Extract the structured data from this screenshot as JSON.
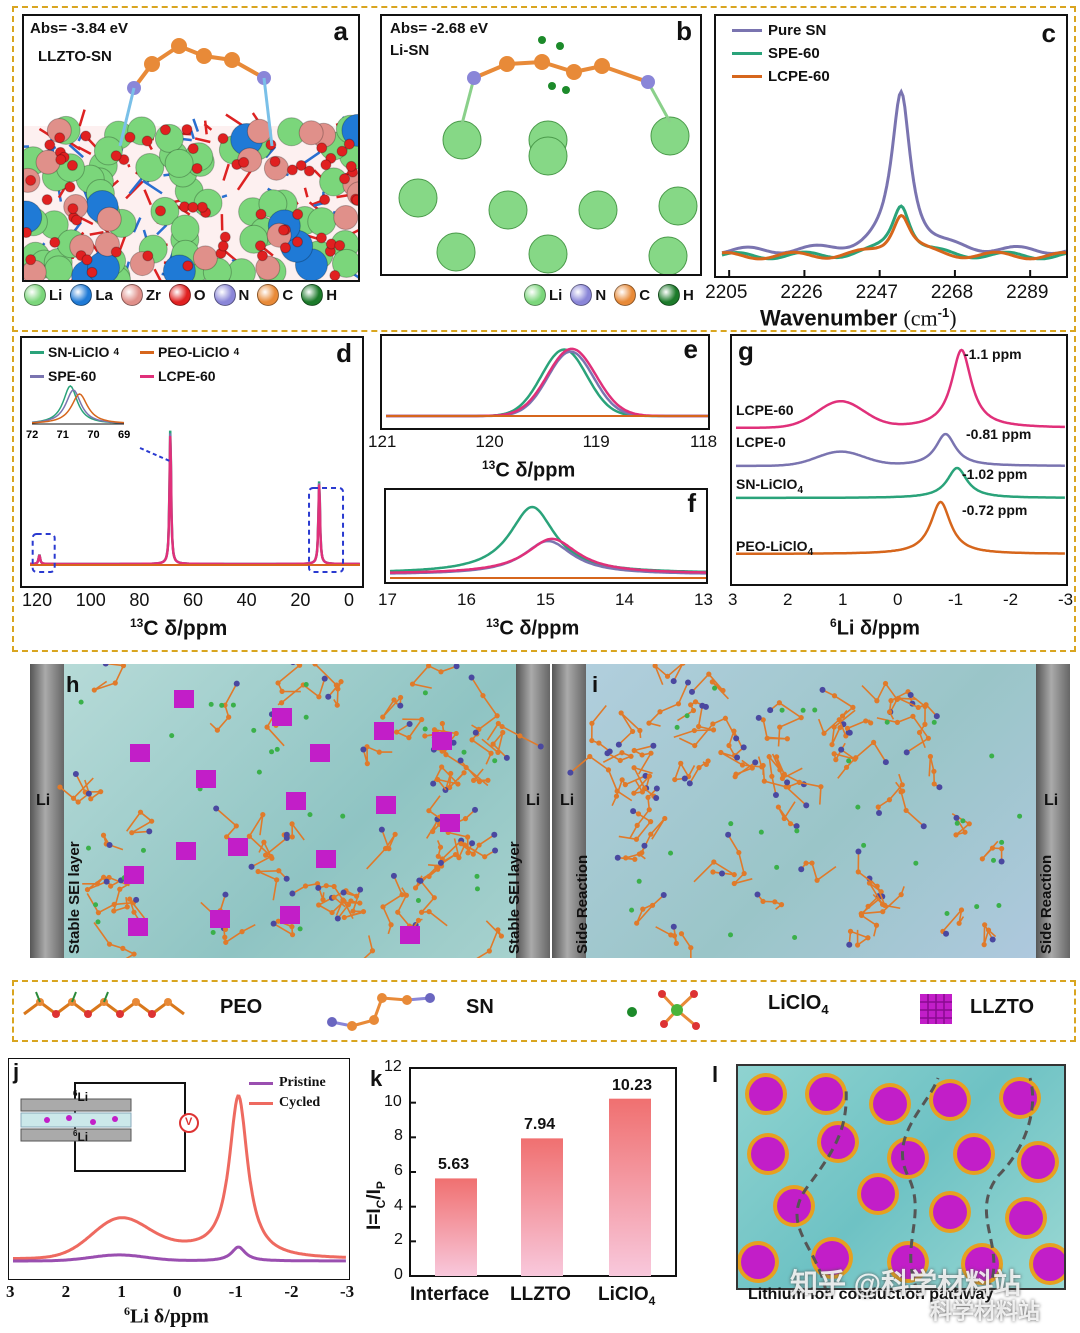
{
  "panel_a": {
    "label": "a",
    "energy": "Abs= -3.84 eV",
    "system": "LLZTO-SN",
    "legend": [
      {
        "symbol": "Li",
        "color": "#7bd67b"
      },
      {
        "symbol": "La",
        "color": "#1f7ad6"
      },
      {
        "symbol": "Zr",
        "color": "#e0908a"
      },
      {
        "symbol": "O",
        "color": "#e02020"
      },
      {
        "symbol": "N",
        "color": "#8a86d8"
      },
      {
        "symbol": "C",
        "color": "#e88a38"
      },
      {
        "symbol": "H",
        "color": "#1c7a2a"
      }
    ]
  },
  "panel_b": {
    "label": "b",
    "energy": "Abs= -2.68 eV",
    "system": "Li-SN",
    "legend": [
      {
        "symbol": "Li",
        "color": "#7bd67b"
      },
      {
        "symbol": "N",
        "color": "#8a86d8"
      },
      {
        "symbol": "C",
        "color": "#e88a38"
      },
      {
        "symbol": "H",
        "color": "#1c7a2a"
      }
    ]
  },
  "panel_c": {
    "label": "c",
    "xlabel": "Wavenumber",
    "xunit": "(cm",
    "xunit_sup": "-1",
    "xunit_close": ")",
    "chart_data": {
      "type": "line",
      "x_ticks": [
        "2205",
        "2226",
        "2247",
        "2268",
        "2289"
      ],
      "xlim": [
        2203,
        2299
      ],
      "series": [
        {
          "name": "Pure SN",
          "color": "#7a74b0",
          "peak_x": 2253,
          "peak_height": 1.0
        },
        {
          "name": "SPE-60",
          "color": "#2aa37a",
          "peak_x": 2253,
          "peak_height": 0.33
        },
        {
          "name": "LCPE-60",
          "color": "#d6661c",
          "peak_x": 2253,
          "peak_height": 0.27
        }
      ]
    }
  },
  "panel_d": {
    "label": "d",
    "xlabel_sup": "13",
    "xlabel": "C δ/ppm",
    "chart_data": {
      "type": "line",
      "x_ticks": [
        "120",
        "100",
        "80",
        "60",
        "40",
        "20",
        "0"
      ],
      "xlim": [
        123,
        0
      ],
      "inset_ticks": [
        "72",
        "71",
        "70",
        "69"
      ],
      "series": [
        {
          "name": "SN-LiClO",
          "name_sub": "4",
          "color": "#2aa37a"
        },
        {
          "name": "PEO-LiClO",
          "name_sub": "4",
          "color": "#d6661c"
        },
        {
          "name": "SPE-60",
          "color": "#7a74b0"
        },
        {
          "name": "LCPE-60",
          "color": "#e0307a"
        }
      ]
    }
  },
  "panel_e": {
    "label": "e",
    "xlabel_sup": "13",
    "xlabel": "C δ/ppm",
    "chart_data": {
      "type": "line",
      "x_ticks": [
        "121",
        "120",
        "119",
        "118"
      ],
      "xlim": [
        121,
        118
      ]
    }
  },
  "panel_f": {
    "label": "f",
    "xlabel_sup": "13",
    "xlabel": "C δ/ppm",
    "chart_data": {
      "type": "line",
      "x_ticks": [
        "17",
        "16",
        "15",
        "14",
        "13"
      ],
      "xlim": [
        17,
        13
      ]
    }
  },
  "panel_g": {
    "label": "g",
    "xlabel_sup": "6",
    "xlabel": "Li δ/ppm",
    "chart_data": {
      "type": "line",
      "x_ticks": [
        "3",
        "2",
        "1",
        "0",
        "-1",
        "-2",
        "-3"
      ],
      "xlim": [
        3,
        -3
      ],
      "series": [
        {
          "name": "LCPE-60",
          "peak_label": "-1.1 ppm",
          "color": "#e0307a",
          "peak_x": -1.1
        },
        {
          "name": "LCPE-0",
          "peak_label": "-0.81 ppm",
          "color": "#7a74b0",
          "peak_x": -0.81
        },
        {
          "name": "SN-LiClO",
          "name_sub": "4",
          "peak_label": "-1.02 ppm",
          "color": "#2aa37a",
          "peak_x": -1.02
        },
        {
          "name": "PEO-LiClO",
          "name_sub": "4",
          "peak_label": "-0.72 ppm",
          "color": "#d6661c",
          "peak_x": -0.72
        }
      ]
    }
  },
  "panel_h": {
    "label": "h",
    "electrode": "Li",
    "layer": "Stable SEI layer"
  },
  "panel_i": {
    "label": "i",
    "electrode": "Li",
    "layer": "Side Reaction"
  },
  "legend_bar": {
    "items": [
      "PEO",
      "SN",
      "LiClO",
      "LLZTO"
    ],
    "sub": "4"
  },
  "panel_j": {
    "label": "j",
    "cell_top": "Li",
    "cell_top_sup": "6",
    "cell_bottom": "Li",
    "cell_bottom_sup": "6",
    "meter": "V",
    "xlabel_sup": "6",
    "xlabel": "Li δ/ppm",
    "chart_data": {
      "type": "line",
      "x_ticks": [
        "3",
        "2",
        "1",
        "0",
        "-1",
        "-2",
        "-3"
      ],
      "xlim": [
        3,
        -3
      ],
      "series": [
        {
          "name": "Pristine",
          "color": "#9a4fb0"
        },
        {
          "name": "Cycled",
          "color": "#ee6a60"
        }
      ]
    }
  },
  "panel_k": {
    "label": "k",
    "ylabel": "I=I",
    "ylabel_sub1": "C",
    "ylabel_mid": "/I",
    "ylabel_sub2": "P",
    "chart_data": {
      "type": "bar",
      "categories": [
        "Interface",
        "LLZTO",
        "LiClO4"
      ],
      "category_labels": [
        "Interface",
        "LLZTO",
        "LiClO"
      ],
      "category_sub": [
        "",
        "",
        "4"
      ],
      "values": [
        5.63,
        7.94,
        10.23
      ],
      "value_labels": [
        "5.63",
        "7.94",
        "10.23"
      ],
      "ylim": [
        0,
        12
      ],
      "y_ticks": [
        "0",
        "2",
        "4",
        "6",
        "8",
        "10",
        "12"
      ]
    }
  },
  "panel_l": {
    "label": "l",
    "caption": "Lithium ion conduction pathway"
  },
  "watermark": {
    "text1": "知乎 @科学材料站",
    "text2": "科学材料站"
  }
}
